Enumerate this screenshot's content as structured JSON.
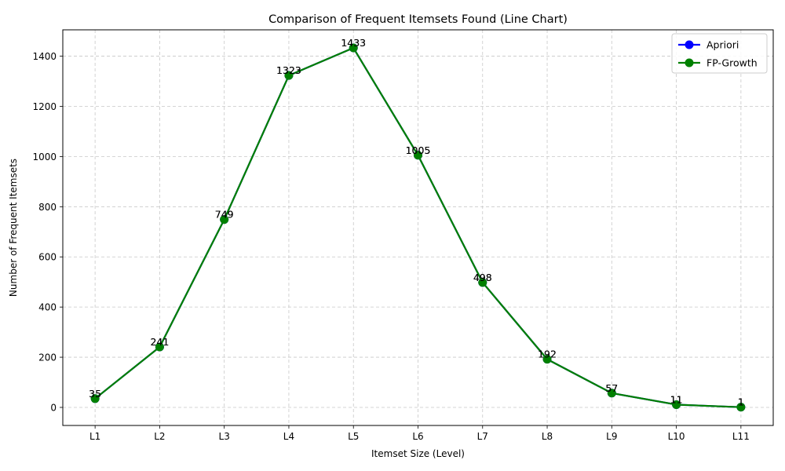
{
  "chart_data": {
    "type": "line",
    "title": "Comparison of Frequent Itemsets Found (Line Chart)",
    "xlabel": "Itemset Size (Level)",
    "ylabel": "Number of Frequent Itemsets",
    "categories": [
      "L1",
      "L2",
      "L3",
      "L4",
      "L5",
      "L6",
      "L7",
      "L8",
      "L9",
      "L10",
      "L11"
    ],
    "series": [
      {
        "name": "Apriori",
        "color": "#0000ff",
        "values": [
          35,
          241,
          749,
          1323,
          1433,
          1005,
          498,
          192,
          57,
          11,
          1
        ]
      },
      {
        "name": "FP-Growth",
        "color": "#008000",
        "values": [
          35,
          241,
          749,
          1323,
          1433,
          1005,
          498,
          192,
          57,
          11,
          1
        ]
      }
    ],
    "ylim": [
      -72,
      1505
    ],
    "yticks": [
      0,
      200,
      400,
      600,
      800,
      1000,
      1200,
      1400
    ],
    "grid": true,
    "legend_position": "top-right",
    "marker": "circle"
  }
}
